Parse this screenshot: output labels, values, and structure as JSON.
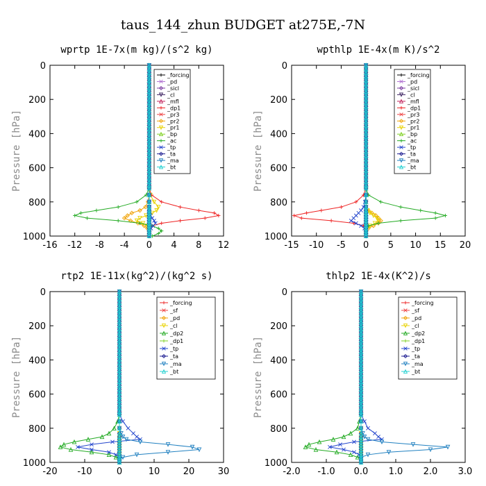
{
  "title": "taus_144_zhun  BUDGET at275E,-7N",
  "ylabel": "Pressure  [hPa]",
  "yticks": [
    "0",
    "200",
    "400",
    "600",
    "800",
    "1000"
  ],
  "chart_data": [
    {
      "type": "line",
      "title": "wprtp   1E-7x(m kg)/(s^2 kg)",
      "xlim": [
        -16,
        12
      ],
      "xticks": [
        "-16",
        "-12",
        "-8",
        "-4",
        "0",
        "4",
        "8",
        "12"
      ],
      "ylim": [
        1000,
        0
      ],
      "pressure": [
        720,
        760,
        800,
        830,
        850,
        865,
        880,
        895,
        910,
        925,
        940,
        955,
        970,
        985,
        1000
      ],
      "series": [
        {
          "name": "_forcing",
          "color": "#000000",
          "values": [
            0,
            0,
            0,
            0,
            0,
            0,
            0,
            0,
            0,
            0,
            0,
            0,
            0,
            0,
            0
          ]
        },
        {
          "name": "_pd",
          "color": "#b070d0",
          "values": [
            0,
            0,
            0,
            0,
            0,
            0,
            0,
            0,
            0,
            0,
            0,
            0,
            0,
            0,
            0
          ]
        },
        {
          "name": "_sicl",
          "color": "#7a3aa0",
          "values": [
            0,
            0,
            0,
            0,
            0,
            0,
            0,
            0,
            0,
            0,
            0,
            0,
            0,
            0,
            0
          ]
        },
        {
          "name": "_cl",
          "color": "#3a2060",
          "values": [
            0,
            0,
            0,
            0,
            0,
            0,
            0,
            0,
            0,
            0,
            0,
            0,
            0,
            0,
            0
          ]
        },
        {
          "name": "_mfl",
          "color": "#c0205a",
          "values": [
            0,
            0,
            0,
            0,
            0,
            0,
            0,
            0,
            0,
            0,
            0,
            0,
            0,
            0,
            0
          ]
        },
        {
          "name": "_dp1",
          "color": "#ee2222",
          "values": [
            0,
            0.4,
            2,
            5,
            8,
            10.5,
            11.2,
            9,
            5,
            2,
            0.5,
            0,
            0,
            0,
            0
          ]
        },
        {
          "name": "_pr3",
          "color": "#ee4444",
          "values": [
            0,
            0,
            0,
            0,
            0,
            0,
            0,
            0,
            0,
            0,
            0,
            0,
            0,
            0,
            0
          ]
        },
        {
          "name": "_pr2",
          "color": "#f0a000",
          "values": [
            0,
            0,
            -0.2,
            -0.6,
            -1.5,
            -2.8,
            -3.5,
            -4,
            -3,
            -1.8,
            -0.8,
            -0.3,
            0,
            0,
            0
          ]
        },
        {
          "name": "_pr1",
          "color": "#e8d200",
          "values": [
            0,
            0.2,
            0.8,
            1.5,
            1.2,
            0.5,
            -0.5,
            -1.5,
            -2,
            -1,
            -0.3,
            0,
            0,
            0,
            0
          ]
        },
        {
          "name": "_bp",
          "color": "#7ed020",
          "values": [
            0,
            0,
            0,
            0,
            0,
            0,
            0,
            0,
            0,
            0,
            0,
            0,
            0,
            0,
            0
          ]
        },
        {
          "name": "_ac",
          "color": "#22aa22",
          "values": [
            0,
            -0.5,
            -2,
            -5,
            -8.5,
            -11,
            -12,
            -10,
            -5,
            -1.5,
            0.5,
            1.5,
            2,
            1.5,
            0.5
          ]
        },
        {
          "name": "_tp",
          "color": "#2244cc",
          "values": [
            0,
            0,
            0,
            0,
            0,
            0,
            0.2,
            0.5,
            0.8,
            1,
            0.6,
            0.3,
            0,
            0,
            0
          ]
        },
        {
          "name": "_ta",
          "color": "#1a1a90",
          "values": [
            0,
            0,
            0,
            0,
            0,
            0,
            0,
            0,
            0,
            0,
            0,
            0,
            0,
            0,
            0
          ]
        },
        {
          "name": "_ma",
          "color": "#2080c0",
          "values": [
            0,
            0,
            0,
            0,
            0,
            0,
            0,
            0,
            0,
            0,
            0,
            0,
            0,
            0,
            0
          ]
        },
        {
          "name": "_bt",
          "color": "#20d0d0",
          "values": [
            0,
            0,
            0,
            0,
            0,
            0,
            0,
            0,
            0,
            0,
            0,
            0,
            0,
            0,
            0
          ]
        }
      ]
    },
    {
      "type": "line",
      "title": "wpthlp   1E-4x(m K)/s^2",
      "xlim": [
        -15,
        20
      ],
      "xticks": [
        "-15",
        "-10",
        "-5",
        "0",
        "5",
        "10",
        "15",
        "20"
      ],
      "ylim": [
        1000,
        0
      ],
      "pressure": [
        720,
        760,
        800,
        830,
        850,
        865,
        880,
        895,
        910,
        925,
        940,
        955,
        970,
        985,
        1000
      ],
      "series": [
        {
          "name": "_forcing",
          "color": "#000000",
          "values": [
            0,
            0,
            0,
            0,
            0,
            0,
            0,
            0,
            0,
            0,
            0,
            0,
            0,
            0,
            0
          ]
        },
        {
          "name": "_pd",
          "color": "#b070d0",
          "values": [
            0,
            0,
            0,
            0,
            0,
            0,
            0,
            0,
            0,
            0,
            0,
            0,
            0,
            0,
            0
          ]
        },
        {
          "name": "_sicl",
          "color": "#7a3aa0",
          "values": [
            0,
            0,
            0,
            0,
            0,
            0,
            0,
            0,
            0,
            0,
            0,
            0,
            0,
            0,
            0
          ]
        },
        {
          "name": "_cl",
          "color": "#3a2060",
          "values": [
            0,
            0,
            0,
            0,
            0,
            0,
            0,
            0,
            0,
            0,
            0,
            0,
            0,
            0,
            0
          ]
        },
        {
          "name": "_mfl",
          "color": "#c0205a",
          "values": [
            0,
            0,
            0,
            0,
            0,
            0,
            0,
            0,
            0,
            0,
            0,
            0,
            0,
            0,
            0
          ]
        },
        {
          "name": "_dp1",
          "color": "#ee2222",
          "values": [
            0,
            -0.5,
            -2,
            -5,
            -9,
            -12,
            -14.5,
            -13,
            -7,
            -2.5,
            -0.5,
            0,
            0,
            0,
            0
          ]
        },
        {
          "name": "_pr3",
          "color": "#ee4444",
          "values": [
            0,
            0,
            0,
            0,
            0,
            0,
            0,
            0,
            0,
            0,
            0,
            0,
            0,
            0,
            0
          ]
        },
        {
          "name": "_pr2",
          "color": "#f0a000",
          "values": [
            0,
            0,
            0,
            0,
            0.5,
            1.2,
            2,
            2.5,
            3,
            2.5,
            1.5,
            0.5,
            0,
            0,
            0
          ]
        },
        {
          "name": "_pr1",
          "color": "#e8d200",
          "values": [
            0,
            0,
            0,
            0,
            0.3,
            0.8,
            1.5,
            2.2,
            2.5,
            1.8,
            0.8,
            0.2,
            0,
            0,
            0
          ]
        },
        {
          "name": "_bp",
          "color": "#7ed020",
          "values": [
            0,
            0,
            0,
            0,
            0,
            0,
            0,
            0,
            0,
            0,
            0,
            0,
            0,
            0,
            0
          ]
        },
        {
          "name": "_ac",
          "color": "#22aa22",
          "values": [
            0,
            0.5,
            3,
            7,
            11,
            14,
            16,
            14,
            7,
            2.5,
            0.5,
            0,
            0,
            0,
            0
          ]
        },
        {
          "name": "_tp",
          "color": "#2244cc",
          "values": [
            0,
            0,
            -0.2,
            -0.5,
            -1,
            -1.5,
            -2,
            -2.5,
            -3,
            -2,
            -1,
            -0.3,
            0,
            0,
            0
          ]
        },
        {
          "name": "_ta",
          "color": "#1a1a90",
          "values": [
            0,
            0,
            0,
            0,
            0,
            0,
            0,
            0,
            0,
            0,
            0,
            0,
            0,
            0,
            0
          ]
        },
        {
          "name": "_ma",
          "color": "#2080c0",
          "values": [
            0,
            0,
            0,
            0,
            0,
            0,
            0,
            0,
            0,
            0,
            0,
            0,
            0,
            0,
            0
          ]
        },
        {
          "name": "_bt",
          "color": "#20d0d0",
          "values": [
            0,
            0,
            0,
            0,
            0,
            0,
            0,
            0,
            0,
            0,
            0,
            0,
            0,
            0,
            0
          ]
        }
      ]
    },
    {
      "type": "line",
      "title": "rtp2   1E-11x(kg^2)/(kg^2 s)",
      "xlim": [
        -20,
        30
      ],
      "xticks": [
        "-20",
        "-10",
        "0",
        "10",
        "20",
        "30"
      ],
      "ylim": [
        1000,
        0
      ],
      "pressure": [
        720,
        760,
        800,
        830,
        850,
        865,
        880,
        895,
        910,
        925,
        940,
        955,
        970,
        985,
        1000
      ],
      "series": [
        {
          "name": "_forcing",
          "color": "#ee2222",
          "values": [
            0,
            0,
            0,
            0,
            0,
            0,
            0,
            0,
            0,
            0,
            0,
            0,
            0,
            0,
            0
          ]
        },
        {
          "name": "_sf",
          "color": "#ee4444",
          "values": [
            0,
            0,
            0,
            0,
            0,
            0,
            0,
            0,
            0,
            0,
            0,
            0,
            0,
            0,
            0
          ]
        },
        {
          "name": "_pd",
          "color": "#f0a000",
          "values": [
            0,
            0,
            0,
            0,
            0,
            0,
            0,
            0,
            0,
            0,
            0,
            0,
            0,
            0,
            0
          ]
        },
        {
          "name": "_cl",
          "color": "#e8d200",
          "values": [
            0,
            0,
            0,
            0,
            0,
            0,
            0,
            0,
            0,
            0,
            0,
            0,
            0,
            0,
            0
          ]
        },
        {
          "name": "_dp2",
          "color": "#22aa22",
          "values": [
            0,
            -0.5,
            -1.5,
            -3,
            -5,
            -9,
            -13,
            -16,
            -17,
            -14,
            -8,
            -3,
            -1,
            0,
            0
          ]
        },
        {
          "name": "_dp1",
          "color": "#7ed020",
          "values": [
            0,
            0,
            0,
            0,
            0,
            0,
            0,
            0,
            0,
            0,
            0,
            0,
            0,
            0,
            0
          ]
        },
        {
          "name": "_tp",
          "color": "#2244cc",
          "values": [
            0,
            1,
            2.5,
            4,
            5,
            6,
            -2,
            -8,
            -12,
            -8,
            -3,
            -1,
            0,
            0,
            0
          ]
        },
        {
          "name": "_ta",
          "color": "#1a1a90",
          "values": [
            0,
            0,
            0,
            0,
            0,
            0,
            0,
            0,
            0,
            0,
            0,
            0,
            0,
            0,
            0
          ]
        },
        {
          "name": "_ma",
          "color": "#2080c0",
          "values": [
            0,
            0,
            0,
            0.5,
            1,
            2,
            6,
            14,
            21,
            23,
            14,
            5,
            1,
            0,
            0
          ]
        },
        {
          "name": "_bt",
          "color": "#20d0d0",
          "values": [
            0,
            0,
            0,
            0,
            0,
            0,
            0,
            0,
            0,
            0,
            0,
            0,
            0,
            0,
            0
          ]
        }
      ]
    },
    {
      "type": "line",
      "title": "thlp2   1E-4x(K^2)/s",
      "xlim": [
        -2.0,
        3.0
      ],
      "xticks": [
        "-2.0",
        "-1.0",
        "0.0",
        "1.0",
        "2.0",
        "3.0"
      ],
      "ylim": [
        1000,
        0
      ],
      "pressure": [
        720,
        760,
        800,
        830,
        850,
        865,
        880,
        895,
        910,
        925,
        940,
        955,
        970,
        985,
        1000
      ],
      "series": [
        {
          "name": "_forcing",
          "color": "#ee2222",
          "values": [
            0,
            0,
            0,
            0,
            0,
            0,
            0,
            0,
            0,
            0,
            0,
            0,
            0,
            0,
            0
          ]
        },
        {
          "name": "_sf",
          "color": "#ee4444",
          "values": [
            0,
            0,
            0,
            0,
            0,
            0,
            0,
            0,
            0,
            0,
            0,
            0,
            0,
            0,
            0
          ]
        },
        {
          "name": "_pd",
          "color": "#f0a000",
          "values": [
            0,
            0,
            0,
            0,
            0,
            0,
            0,
            0,
            0,
            0,
            0,
            0,
            0,
            0,
            0
          ]
        },
        {
          "name": "_cl",
          "color": "#e8d200",
          "values": [
            0,
            0,
            0,
            0,
            0,
            0,
            0,
            0,
            0,
            0,
            0,
            0,
            0,
            0,
            0
          ]
        },
        {
          "name": "_dp2",
          "color": "#22aa22",
          "values": [
            0,
            -0.05,
            -0.1,
            -0.3,
            -0.5,
            -0.8,
            -1.2,
            -1.5,
            -1.6,
            -1.3,
            -0.7,
            -0.3,
            -0.1,
            0,
            0
          ]
        },
        {
          "name": "_dp1",
          "color": "#7ed020",
          "values": [
            0,
            0,
            0,
            0,
            0,
            0,
            0,
            0,
            0,
            0,
            0,
            0,
            0,
            0,
            0
          ]
        },
        {
          "name": "_tp",
          "color": "#2244cc",
          "values": [
            0,
            0.1,
            0.2,
            0.4,
            0.5,
            0.6,
            -0.2,
            -0.6,
            -0.9,
            -0.5,
            -0.2,
            -0.05,
            0,
            0,
            0
          ]
        },
        {
          "name": "_ta",
          "color": "#1a1a90",
          "values": [
            0,
            0,
            0,
            0,
            0,
            0,
            0,
            0,
            0,
            0,
            0,
            0,
            0,
            0,
            0
          ]
        },
        {
          "name": "_ma",
          "color": "#2080c0",
          "values": [
            0,
            0,
            0,
            0.05,
            0.1,
            0.2,
            0.6,
            1.5,
            2.5,
            2.0,
            0.8,
            0.2,
            0,
            0,
            0
          ]
        },
        {
          "name": "_bt",
          "color": "#20d0d0",
          "values": [
            0,
            0,
            0,
            0,
            0,
            0,
            0,
            0,
            0,
            0,
            0,
            0,
            0,
            0,
            0
          ]
        }
      ]
    }
  ]
}
